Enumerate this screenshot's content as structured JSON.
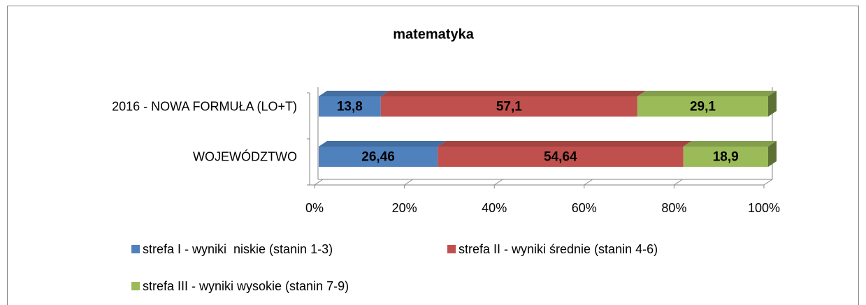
{
  "chart_data": {
    "type": "bar",
    "orientation": "horizontal",
    "stacked": true,
    "title": "matematyka",
    "categories": [
      "2016 - NOWA FORMUŁA (LO+T)",
      "WOJEWÓDZTWO"
    ],
    "series": [
      {
        "name": "strefa I - wyniki  niskie (stanin 1-3)",
        "color": "#4f81bd",
        "values": [
          13.8,
          26.46
        ],
        "value_labels": [
          "13,8",
          "26,46"
        ]
      },
      {
        "name": "strefa II - wyniki średnie (stanin 4-6)",
        "color": "#c0504d",
        "values": [
          57.1,
          54.64
        ],
        "value_labels": [
          "57,1",
          "54,64"
        ]
      },
      {
        "name": "strefa III - wyniki wysokie (stanin 7-9)",
        "color": "#9bbb59",
        "values": [
          29.1,
          18.9
        ],
        "value_labels": [
          "29,1",
          "18,9"
        ]
      }
    ],
    "xlim": [
      0,
      100
    ],
    "xticks": [
      {
        "value": 0,
        "label": "0%"
      },
      {
        "value": 20,
        "label": "20%"
      },
      {
        "value": 40,
        "label": "40%"
      },
      {
        "value": 60,
        "label": "60%"
      },
      {
        "value": 80,
        "label": "80%"
      },
      {
        "value": 100,
        "label": "100%"
      }
    ],
    "legend": "bottom"
  }
}
